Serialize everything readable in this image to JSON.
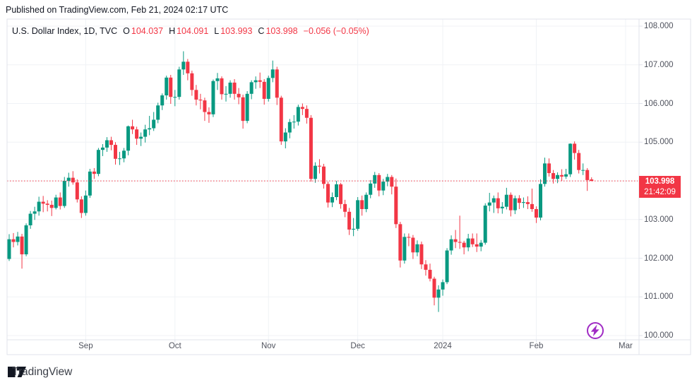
{
  "published": "Published on TradingView.com, Feb 21, 2024 02:17 UTC",
  "legend": {
    "title": "U.S. Dollar Index, 1D, TVC",
    "ohlc": [
      {
        "k": "O",
        "v": "104.037"
      },
      {
        "k": "H",
        "v": "104.091"
      },
      {
        "k": "L",
        "v": "103.993"
      },
      {
        "k": "C",
        "v": "103.998"
      }
    ],
    "change": "−0.056 (−0.05%)"
  },
  "price_scale": {
    "gridlines": [
      108,
      107,
      106,
      105,
      104,
      103,
      102,
      101,
      100
    ],
    "labels": [
      "108.000",
      "107.000",
      "106.000",
      "105.000",
      "103.000",
      "102.000",
      "101.000",
      "100.000"
    ],
    "last_price": "103.998",
    "countdown": "21:42:09"
  },
  "time_scale": {
    "labels": [
      {
        "text": "Sep",
        "i": 18
      },
      {
        "text": "Oct",
        "i": 39
      },
      {
        "text": "Nov",
        "i": 61
      },
      {
        "text": "Dec",
        "i": 82
      },
      {
        "text": "2024",
        "i": 102
      },
      {
        "text": "Feb",
        "i": 124
      },
      {
        "text": "Mar",
        "i": 145
      }
    ]
  },
  "footer": {
    "brand": "TradingView"
  },
  "colors": {
    "up": "#089981",
    "down": "#F23645",
    "grid": "#F0F2F6",
    "border": "#E0E3EB",
    "text": "#131722",
    "axis_text": "#50535E",
    "flag_bg": "#F23645",
    "boost_purple": "#A02BC4"
  },
  "chart_data": {
    "type": "candlestick",
    "title": "U.S. Dollar Index",
    "interval": "1D",
    "exchange": "TVC",
    "price_line": 103.998,
    "y_range_visible": [
      99.9,
      108.2
    ],
    "y_ticks": [
      100,
      101,
      102,
      103,
      104,
      105,
      106,
      107,
      108
    ],
    "x_tick_labels": [
      "Sep",
      "Oct",
      "Nov",
      "Dec",
      "2024",
      "Feb",
      "Mar"
    ],
    "legend_ohlc": {
      "open": 104.037,
      "high": 104.091,
      "low": 103.993,
      "close": 103.998,
      "change": -0.056,
      "change_pct": -0.05
    },
    "candles": [
      [
        101.98,
        102.62,
        101.93,
        102.49
      ],
      [
        102.49,
        102.65,
        102.28,
        102.42
      ],
      [
        102.42,
        102.68,
        102.33,
        102.56
      ],
      [
        102.56,
        102.63,
        101.73,
        102.1
      ],
      [
        102.1,
        102.9,
        102.05,
        102.85
      ],
      [
        102.85,
        103.22,
        102.76,
        103.15
      ],
      [
        103.15,
        103.33,
        102.99,
        103.21
      ],
      [
        103.21,
        103.59,
        103.1,
        103.46
      ],
      [
        103.46,
        103.61,
        103.19,
        103.41
      ],
      [
        103.41,
        103.5,
        103.21,
        103.38
      ],
      [
        103.38,
        103.49,
        103.09,
        103.3
      ],
      [
        103.3,
        103.64,
        103.26,
        103.57
      ],
      [
        103.57,
        103.7,
        103.26,
        103.35
      ],
      [
        103.35,
        104.1,
        103.3,
        104.0
      ],
      [
        104.0,
        104.21,
        103.85,
        104.08
      ],
      [
        104.08,
        104.25,
        103.9,
        103.96
      ],
      [
        103.96,
        104.04,
        103.44,
        103.52
      ],
      [
        103.52,
        103.6,
        103.04,
        103.17
      ],
      [
        103.17,
        103.75,
        103.1,
        103.62
      ],
      [
        103.62,
        104.31,
        103.56,
        104.24
      ],
      [
        104.24,
        104.33,
        104.05,
        104.18
      ],
      [
        104.18,
        104.85,
        104.12,
        104.8
      ],
      [
        104.8,
        104.95,
        104.64,
        104.86
      ],
      [
        104.86,
        105.13,
        104.75,
        105.05
      ],
      [
        105.05,
        105.14,
        104.79,
        104.93
      ],
      [
        104.93,
        105.0,
        104.42,
        104.57
      ],
      [
        104.57,
        104.75,
        104.41,
        104.58
      ],
      [
        104.58,
        104.85,
        104.48,
        104.78
      ],
      [
        104.78,
        105.43,
        104.66,
        105.41
      ],
      [
        105.41,
        105.58,
        105.21,
        105.33
      ],
      [
        105.33,
        105.4,
        104.93,
        105.09
      ],
      [
        105.09,
        105.25,
        104.9,
        105.14
      ],
      [
        105.14,
        105.45,
        104.99,
        105.33
      ],
      [
        105.33,
        105.68,
        105.18,
        105.36
      ],
      [
        105.36,
        105.78,
        105.29,
        105.58
      ],
      [
        105.58,
        106.02,
        105.49,
        105.95
      ],
      [
        105.95,
        106.26,
        105.83,
        106.21
      ],
      [
        106.21,
        106.72,
        106.1,
        106.67
      ],
      [
        106.67,
        106.74,
        105.99,
        106.17
      ],
      [
        106.17,
        106.35,
        105.93,
        106.17
      ],
      [
        106.17,
        106.95,
        106.1,
        106.88
      ],
      [
        106.88,
        107.35,
        106.74,
        107.08
      ],
      [
        107.08,
        107.15,
        106.6,
        106.78
      ],
      [
        106.78,
        106.85,
        106.2,
        106.35
      ],
      [
        106.35,
        106.48,
        105.95,
        106.1
      ],
      [
        106.1,
        106.25,
        105.85,
        106.08
      ],
      [
        106.08,
        106.15,
        105.55,
        105.78
      ],
      [
        105.78,
        105.9,
        105.5,
        105.72
      ],
      [
        105.72,
        106.62,
        105.65,
        106.58
      ],
      [
        106.58,
        106.79,
        106.35,
        106.65
      ],
      [
        106.65,
        106.7,
        106.1,
        106.24
      ],
      [
        106.24,
        106.45,
        106.05,
        106.25
      ],
      [
        106.25,
        106.6,
        106.15,
        106.54
      ],
      [
        106.54,
        106.63,
        106.1,
        106.25
      ],
      [
        106.25,
        106.4,
        105.98,
        106.16
      ],
      [
        106.16,
        106.23,
        105.35,
        105.55
      ],
      [
        105.55,
        106.32,
        105.49,
        106.25
      ],
      [
        106.25,
        106.6,
        106.11,
        106.55
      ],
      [
        106.55,
        106.7,
        106.38,
        106.6
      ],
      [
        106.6,
        106.8,
        106.4,
        106.56
      ],
      [
        106.56,
        106.63,
        105.97,
        106.12
      ],
      [
        106.12,
        106.72,
        106.05,
        106.66
      ],
      [
        106.66,
        107.11,
        106.55,
        106.88
      ],
      [
        106.88,
        106.95,
        105.96,
        106.15
      ],
      [
        106.15,
        106.2,
        104.93,
        105.02
      ],
      [
        105.02,
        105.36,
        104.84,
        105.25
      ],
      [
        105.25,
        105.6,
        105.1,
        105.52
      ],
      [
        105.52,
        105.7,
        105.35,
        105.53
      ],
      [
        105.53,
        105.97,
        105.43,
        105.91
      ],
      [
        105.91,
        106.0,
        105.7,
        105.86
      ],
      [
        105.86,
        105.95,
        105.48,
        105.63
      ],
      [
        105.63,
        105.7,
        103.98,
        104.05
      ],
      [
        104.05,
        104.48,
        103.95,
        104.39
      ],
      [
        104.39,
        104.56,
        104.19,
        104.37
      ],
      [
        104.37,
        104.44,
        103.8,
        103.92
      ],
      [
        103.92,
        103.98,
        103.31,
        103.44
      ],
      [
        103.44,
        103.7,
        103.32,
        103.58
      ],
      [
        103.58,
        104.0,
        103.5,
        103.91
      ],
      [
        103.91,
        103.95,
        103.28,
        103.4
      ],
      [
        103.4,
        103.51,
        103.06,
        103.2
      ],
      [
        103.2,
        103.3,
        102.6,
        102.74
      ],
      [
        102.74,
        103.04,
        102.57,
        102.76
      ],
      [
        102.76,
        103.58,
        102.71,
        103.5
      ],
      [
        103.5,
        103.62,
        103.1,
        103.27
      ],
      [
        103.27,
        103.7,
        103.19,
        103.64
      ],
      [
        103.64,
        104.02,
        103.55,
        103.93
      ],
      [
        103.93,
        104.23,
        103.82,
        104.15
      ],
      [
        104.15,
        104.2,
        103.6,
        103.75
      ],
      [
        103.75,
        104.05,
        103.63,
        103.98
      ],
      [
        103.98,
        104.18,
        103.86,
        104.1
      ],
      [
        104.1,
        104.15,
        103.65,
        103.85
      ],
      [
        103.85,
        104.06,
        102.78,
        102.88
      ],
      [
        102.88,
        102.94,
        101.76,
        101.94
      ],
      [
        101.94,
        102.64,
        101.86,
        102.55
      ],
      [
        102.55,
        102.64,
        102.31,
        102.53
      ],
      [
        102.53,
        102.6,
        101.98,
        102.15
      ],
      [
        102.15,
        102.46,
        102.05,
        102.36
      ],
      [
        102.36,
        102.43,
        101.72,
        101.84
      ],
      [
        101.84,
        101.95,
        101.55,
        101.7
      ],
      [
        101.7,
        101.86,
        101.4,
        101.47
      ],
      [
        101.47,
        101.52,
        100.78,
        100.98
      ],
      [
        100.98,
        101.3,
        100.61,
        101.19
      ],
      [
        101.19,
        101.45,
        101.03,
        101.38
      ],
      [
        101.38,
        102.26,
        101.33,
        102.2
      ],
      [
        102.2,
        102.59,
        102.09,
        102.49
      ],
      [
        102.49,
        102.73,
        102.26,
        102.42
      ],
      [
        102.42,
        103.1,
        102.24,
        102.4
      ],
      [
        102.4,
        102.45,
        102.1,
        102.28
      ],
      [
        102.28,
        102.63,
        102.18,
        102.51
      ],
      [
        102.51,
        102.64,
        102.29,
        102.36
      ],
      [
        102.36,
        102.64,
        102.16,
        102.3
      ],
      [
        102.3,
        102.47,
        102.18,
        102.4
      ],
      [
        102.4,
        103.42,
        102.35,
        103.36
      ],
      [
        103.36,
        103.69,
        103.21,
        103.44
      ],
      [
        103.44,
        103.62,
        103.17,
        103.55
      ],
      [
        103.55,
        103.7,
        103.16,
        103.29
      ],
      [
        103.29,
        103.45,
        103.15,
        103.33
      ],
      [
        103.33,
        103.82,
        103.26,
        103.64
      ],
      [
        103.64,
        103.7,
        103.08,
        103.24
      ],
      [
        103.24,
        103.62,
        103.14,
        103.55
      ],
      [
        103.55,
        103.63,
        103.27,
        103.43
      ],
      [
        103.43,
        103.57,
        103.3,
        103.45
      ],
      [
        103.45,
        103.6,
        103.27,
        103.4
      ],
      [
        103.4,
        103.8,
        103.2,
        103.27
      ],
      [
        103.27,
        103.34,
        102.91,
        103.05
      ],
      [
        103.05,
        104.04,
        102.98,
        103.92
      ],
      [
        103.92,
        104.6,
        103.85,
        104.45
      ],
      [
        104.45,
        104.58,
        104.11,
        104.2
      ],
      [
        104.2,
        104.28,
        103.93,
        104.05
      ],
      [
        104.05,
        104.22,
        103.94,
        104.15
      ],
      [
        104.15,
        104.3,
        104.0,
        104.11
      ],
      [
        104.11,
        104.31,
        104.05,
        104.17
      ],
      [
        104.17,
        104.97,
        104.1,
        104.96
      ],
      [
        104.96,
        105.02,
        104.55,
        104.72
      ],
      [
        104.72,
        104.8,
        104.19,
        104.28
      ],
      [
        104.28,
        104.45,
        104.15,
        104.28
      ],
      [
        104.28,
        104.33,
        103.74,
        104.02
      ],
      [
        104.037,
        104.091,
        103.993,
        103.998
      ]
    ]
  }
}
